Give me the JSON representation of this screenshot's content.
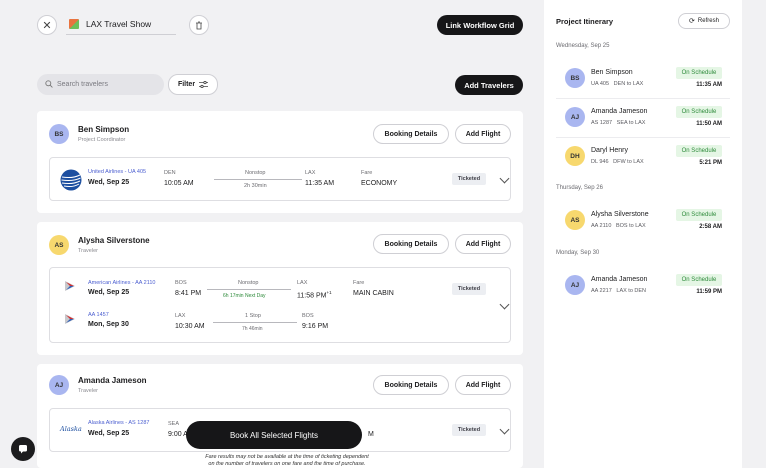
{
  "header": {
    "title": "LAX Travel Show",
    "link_button": "Link Workflow Grid"
  },
  "toolbar": {
    "search_placeholder": "Search travelers",
    "filter_label": "Filter",
    "add_travelers_label": "Add Travelers"
  },
  "common": {
    "booking_details": "Booking Details",
    "add_flight": "Add Flight",
    "ticketed": "Ticketed",
    "fare_label": "Fare"
  },
  "travelers": [
    {
      "initials": "BS",
      "name": "Ben Simpson",
      "role": "Project Coordinator",
      "flights": [
        {
          "airline": "United Airlines - UA 405",
          "date": "Wed, Sep 25",
          "from_code": "DEN",
          "from_time": "10:05 AM",
          "stops": "Nonstop",
          "duration": "2h 30min",
          "to_code": "LAX",
          "to_time": "11:35 AM",
          "fare": "ECONOMY"
        }
      ]
    },
    {
      "initials": "AS",
      "name": "Alysha Silverstone",
      "role": "Traveler",
      "flights": [
        {
          "airline": "American Airlines - AA 2110",
          "date": "Wed, Sep 25",
          "from_code": "BOS",
          "from_time": "8:41 PM",
          "stops": "Nonstop",
          "duration": "6h 17min Next Day",
          "to_code": "LAX",
          "to_time": "11:58 PM",
          "to_sup": "+1",
          "fare": "MAIN CABIN"
        },
        {
          "airline": "AA 1457",
          "date": "Mon, Sep 30",
          "from_code": "LAX",
          "from_time": "10:30 AM",
          "stops": "1 Stop",
          "duration": "7h 46min",
          "to_code": "BOS",
          "to_time": "9:16 PM"
        }
      ]
    },
    {
      "initials": "AJ",
      "name": "Amanda Jameson",
      "role": "Traveler",
      "flights": [
        {
          "airline": "Alaska Airlines - AS 1287",
          "date": "Wed, Sep 25",
          "from_code": "SEA",
          "from_time": "9:00 A",
          "to_time": "M",
          "logo_text": "Alaska"
        }
      ]
    }
  ],
  "book_all": "Book All Selected Flights",
  "disclaimer": [
    "Fare results may not be available at the time of ticketing dependent",
    "on the number of travelers on one fare and the time of purchase."
  ],
  "itinerary": {
    "title": "Project Itinerary",
    "refresh": "Refresh",
    "status": "On Schedule",
    "groups": [
      {
        "date": "Wednesday, Sep 25",
        "items": [
          {
            "initials": "BS",
            "name": "Ben Simpson",
            "sub": "UA 405   DEN to LAX",
            "time": "11:35 AM",
            "color": "#a9b6f0"
          },
          {
            "initials": "AJ",
            "name": "Amanda Jameson",
            "sub": "AS 1287   SEA to LAX",
            "time": "11:50 AM",
            "color": "#a9b6f0"
          },
          {
            "initials": "DH",
            "name": "Daryl Henry",
            "sub": "DL 946   DFW to LAX",
            "time": "5:21 PM",
            "color": "#f7d86e"
          }
        ]
      },
      {
        "date": "Thursday, Sep 26",
        "items": [
          {
            "initials": "AS",
            "name": "Alysha Silverstone",
            "sub": "AA 2110   BOS to LAX",
            "time": "2:58 AM",
            "color": "#f7d86e"
          }
        ]
      },
      {
        "date": "Monday, Sep 30",
        "items": [
          {
            "initials": "AJ",
            "name": "Amanda Jameson",
            "sub": "AA 2217   LAX to DEN",
            "time": "11:59 PM",
            "color": "#a9b6f0"
          }
        ]
      }
    ]
  },
  "icons": {
    "close": "close-icon",
    "trash": "trash-icon",
    "search": "search-icon",
    "filter": "filter-icon",
    "refresh": "refresh-icon",
    "chat": "chat-icon"
  }
}
